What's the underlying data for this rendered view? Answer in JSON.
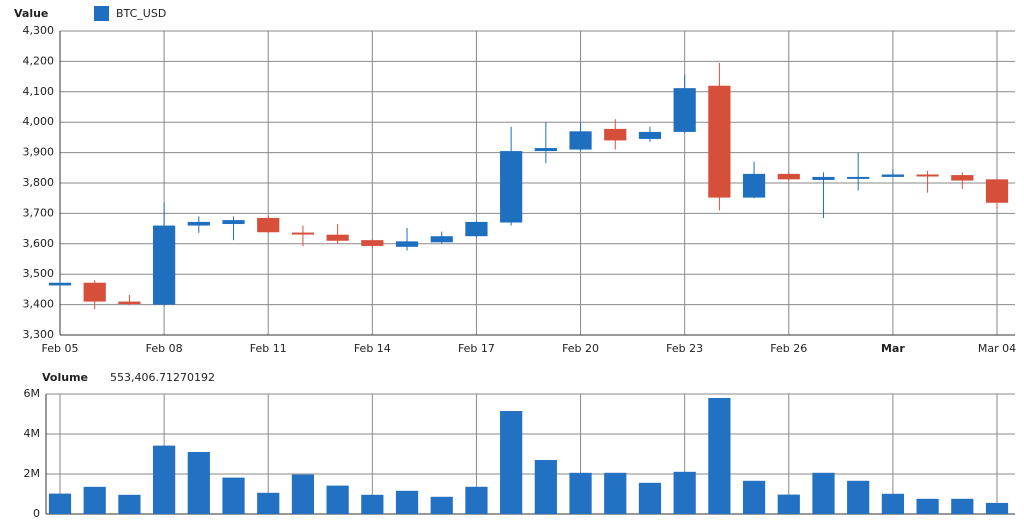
{
  "chart_data": [
    {
      "type": "candlestick",
      "legend_title": "Value",
      "categories": [
        "Feb 05",
        null,
        null,
        "Feb 08",
        null,
        null,
        "Feb 11",
        null,
        null,
        "Feb 14",
        null,
        null,
        "Feb 17",
        null,
        null,
        "Feb 20",
        null,
        null,
        "Feb 23",
        null,
        null,
        "Feb 26",
        null,
        null,
        "Mar",
        null,
        null,
        "Mar 04"
      ],
      "bold_categories": [
        "Mar"
      ],
      "series": [
        {
          "name": "BTC_USD",
          "color": "#1f6fbf",
          "up_color": "#1f6fbf",
          "down_color": "#d64f3b",
          "open": [
            3463,
            3472,
            3410,
            3400,
            3660,
            3665,
            3685,
            3637,
            3630,
            3612,
            3590,
            3605,
            3625,
            3670,
            3905,
            3910,
            3978,
            3945,
            3968,
            4120,
            3752,
            3830,
            3810,
            3815,
            3820,
            3828,
            3826,
            3812
          ],
          "high": [
            3478,
            3480,
            3432,
            3735,
            3690,
            3690,
            3690,
            3660,
            3665,
            3615,
            3652,
            3640,
            3675,
            3985,
            4000,
            4000,
            4010,
            3985,
            4155,
            4195,
            3870,
            3835,
            3835,
            3900,
            3845,
            3840,
            3835,
            3815
          ],
          "low": [
            3460,
            3385,
            3398,
            3395,
            3636,
            3612,
            3635,
            3592,
            3600,
            3588,
            3578,
            3600,
            3620,
            3660,
            3865,
            3905,
            3910,
            3935,
            3965,
            3710,
            3750,
            3808,
            3685,
            3775,
            3820,
            3768,
            3780,
            3715
          ],
          "close": [
            3472,
            3410,
            3402,
            3660,
            3672,
            3678,
            3638,
            3633,
            3610,
            3593,
            3608,
            3625,
            3672,
            3905,
            3915,
            3970,
            3940,
            3968,
            4112,
            3752,
            3830,
            3812,
            3820,
            3820,
            3828,
            3823,
            3808,
            3735
          ]
        }
      ],
      "ylim": [
        3300,
        4300
      ],
      "yticks": [
        {
          "value": 3300,
          "label": "3,300"
        },
        {
          "value": 3400,
          "label": "3,400"
        },
        {
          "value": 3500,
          "label": "3,500"
        },
        {
          "value": 3600,
          "label": "3,600"
        },
        {
          "value": 3700,
          "label": "3,700"
        },
        {
          "value": 3800,
          "label": "3,800"
        },
        {
          "value": 3900,
          "label": "3,900"
        },
        {
          "value": 4000,
          "label": "4,000"
        },
        {
          "value": 4100,
          "label": "4,100"
        },
        {
          "value": 4200,
          "label": "4,200"
        },
        {
          "value": 4300,
          "label": "4,300"
        }
      ],
      "grid": true
    },
    {
      "type": "bar",
      "legend_title": "Volume",
      "color": "#2271c3",
      "values": [
        1020000,
        1360000,
        960000,
        3420000,
        3100000,
        1820000,
        1060000,
        1970000,
        1420000,
        960000,
        1160000,
        860000,
        1360000,
        5150000,
        2700000,
        2060000,
        2060000,
        1560000,
        2110000,
        5800000,
        1660000,
        970000,
        2060000,
        1660000,
        1010000,
        760000,
        760000,
        553406.71270192
      ],
      "value_labels": [
        null,
        null,
        null,
        null,
        null,
        null,
        null,
        null,
        null,
        null,
        null,
        null,
        null,
        null,
        null,
        null,
        null,
        null,
        null,
        null,
        null,
        null,
        null,
        null,
        null,
        null,
        null,
        "553,406.71270192"
      ],
      "ylim": [
        0,
        6000000
      ],
      "yticks": [
        0,
        {
          "value": 2000000,
          "label": "2M"
        },
        {
          "value": 4000000,
          "label": "4M"
        },
        {
          "value": 6000000,
          "label": "6M"
        }
      ],
      "grid": true
    }
  ]
}
